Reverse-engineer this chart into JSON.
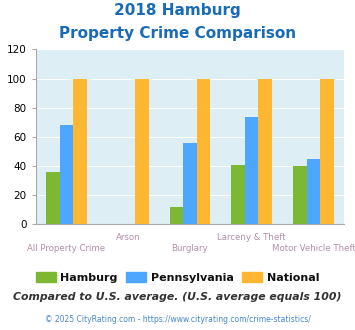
{
  "title_line1": "2018 Hamburg",
  "title_line2": "Property Crime Comparison",
  "categories": [
    "All Property Crime",
    "Arson",
    "Burglary",
    "Larceny & Theft",
    "Motor Vehicle Theft"
  ],
  "xlabel_row1": [
    "",
    "Arson",
    "",
    "Larceny & Theft",
    ""
  ],
  "xlabel_row2": [
    "All Property Crime",
    "",
    "Burglary",
    "",
    "Motor Vehicle Theft"
  ],
  "hamburg": [
    36,
    0,
    12,
    41,
    40
  ],
  "pennsylvania": [
    68,
    0,
    56,
    74,
    45
  ],
  "national": [
    100,
    100,
    100,
    100,
    100
  ],
  "hamburg_color": "#7db832",
  "pennsylvania_color": "#4da6ff",
  "national_color": "#ffb732",
  "ylim": [
    0,
    120
  ],
  "yticks": [
    0,
    20,
    40,
    60,
    80,
    100,
    120
  ],
  "bg_color": "#ddeef5",
  "title_color": "#1a6bb5",
  "xlabel_color_top": "#b08faa",
  "xlabel_color_bot": "#b08faa",
  "legend_label_color": "#111111",
  "footer_text": "Compared to U.S. average. (U.S. average equals 100)",
  "footer_color": "#333333",
  "copyright_text": "© 2025 CityRating.com - https://www.cityrating.com/crime-statistics/",
  "copyright_color": "#4488cc",
  "bar_width": 0.22
}
